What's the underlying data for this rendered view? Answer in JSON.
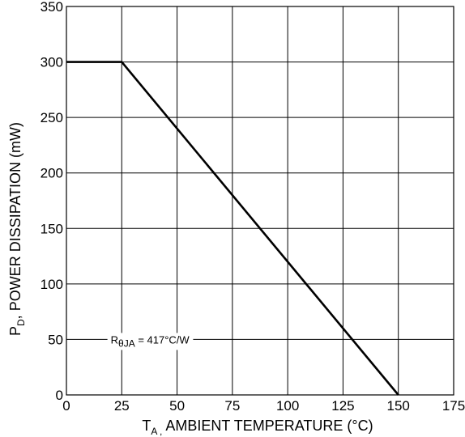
{
  "chart_data": {
    "type": "line",
    "title": "",
    "xlabel": {
      "main": "T",
      "sub": "A ,",
      "rest": " AMBIENT TEMPERATURE (°C)"
    },
    "ylabel": {
      "main": "P",
      "sub": "D",
      "rest": ", POWER DISSIPATION (mW)"
    },
    "xlim": [
      0,
      175
    ],
    "ylim": [
      0,
      350
    ],
    "xticks": [
      "0",
      "25",
      "50",
      "75",
      "100",
      "125",
      "150",
      "175"
    ],
    "yticks": [
      "0",
      "50",
      "100",
      "150",
      "200",
      "250",
      "300",
      "350"
    ],
    "grid": true,
    "series": [
      {
        "color": "#000000",
        "x": [
          0,
          25,
          150
        ],
        "y": [
          300,
          300,
          0
        ]
      }
    ],
    "annotation": {
      "main": "R",
      "sub": "θJA",
      "rest": " = 417°C/W",
      "x": 20,
      "y": 50
    }
  }
}
